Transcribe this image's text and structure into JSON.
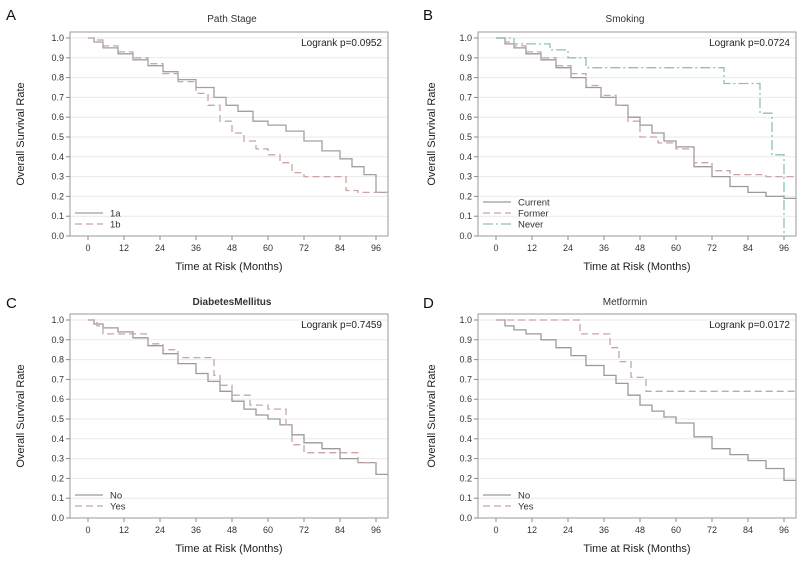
{
  "chart_data": [
    {
      "letter": "A",
      "title": "Path Stage",
      "type": "line",
      "annotation": "Logrank p=0.0952",
      "xlabel": "Time at Risk (Months)",
      "ylabel": "Overall Survival Rate",
      "xticks": [
        "0",
        "12",
        "24",
        "36",
        "48",
        "60",
        "72",
        "84",
        "96"
      ],
      "yticks": [
        "0.0",
        "0.1",
        "0.2",
        "0.3",
        "0.4",
        "0.5",
        "0.6",
        "0.7",
        "0.8",
        "0.9",
        "1.0"
      ],
      "xlim": [
        -6,
        100
      ],
      "ylim": [
        0,
        1
      ],
      "legend": "bottom-left",
      "series": [
        {
          "name": "1a",
          "color": "#a0a0a0",
          "dash": "",
          "x": [
            0,
            2,
            5,
            10,
            15,
            20,
            25,
            30,
            36,
            42,
            46,
            50,
            55,
            60,
            66,
            72,
            78,
            84,
            88,
            92,
            96,
            100
          ],
          "y": [
            1.0,
            0.98,
            0.95,
            0.92,
            0.89,
            0.86,
            0.83,
            0.79,
            0.75,
            0.7,
            0.66,
            0.63,
            0.58,
            0.56,
            0.53,
            0.48,
            0.43,
            0.39,
            0.35,
            0.31,
            0.22,
            0.22
          ]
        },
        {
          "name": "1b",
          "color": "#c9a5a5",
          "dash": "7,4",
          "x": [
            0,
            2,
            5,
            10,
            15,
            20,
            25,
            30,
            36,
            40,
            44,
            48,
            52,
            56,
            60,
            64,
            68,
            72,
            80,
            86,
            90,
            96,
            100
          ],
          "y": [
            1.0,
            0.99,
            0.96,
            0.93,
            0.9,
            0.87,
            0.82,
            0.78,
            0.72,
            0.66,
            0.58,
            0.52,
            0.48,
            0.44,
            0.41,
            0.37,
            0.32,
            0.3,
            0.3,
            0.23,
            0.22,
            0.22,
            0.22
          ]
        }
      ]
    },
    {
      "letter": "B",
      "title": "Smoking",
      "type": "line",
      "annotation": "Logrank p=0.0724",
      "xlabel": "Time at Risk (Months)",
      "ylabel": "Overall Survival Rate",
      "xticks": [
        "0",
        "12",
        "24",
        "36",
        "48",
        "60",
        "72",
        "84",
        "96"
      ],
      "yticks": [
        "0.0",
        "0.1",
        "0.2",
        "0.3",
        "0.4",
        "0.5",
        "0.6",
        "0.7",
        "0.8",
        "0.9",
        "1.0"
      ],
      "xlim": [
        -6,
        100
      ],
      "ylim": [
        0,
        1
      ],
      "legend": "bottom-left",
      "series": [
        {
          "name": "Current",
          "color": "#9a9a9a",
          "dash": "",
          "x": [
            0,
            3,
            6,
            10,
            15,
            20,
            25,
            30,
            35,
            40,
            44,
            48,
            52,
            56,
            60,
            66,
            72,
            78,
            84,
            90,
            96,
            100
          ],
          "y": [
            1.0,
            0.97,
            0.95,
            0.92,
            0.89,
            0.85,
            0.8,
            0.75,
            0.7,
            0.66,
            0.6,
            0.56,
            0.52,
            0.48,
            0.45,
            0.35,
            0.3,
            0.25,
            0.22,
            0.2,
            0.19,
            0.19
          ]
        },
        {
          "name": "Former",
          "color": "#c9a5a5",
          "dash": "7,4",
          "x": [
            0,
            3,
            6,
            10,
            15,
            20,
            25,
            30,
            35,
            40,
            44,
            48,
            54,
            60,
            66,
            72,
            78,
            84,
            90,
            96,
            100
          ],
          "y": [
            1.0,
            0.98,
            0.96,
            0.93,
            0.9,
            0.86,
            0.82,
            0.76,
            0.71,
            0.66,
            0.58,
            0.5,
            0.47,
            0.44,
            0.37,
            0.33,
            0.31,
            0.31,
            0.3,
            0.3,
            0.25
          ]
        },
        {
          "name": "Never",
          "color": "#8fc1b1",
          "dash": "10,3,2,3",
          "x": [
            0,
            6,
            18,
            24,
            30,
            70,
            76,
            82,
            88,
            92,
            95,
            96
          ],
          "y": [
            1.0,
            0.97,
            0.94,
            0.9,
            0.85,
            0.85,
            0.77,
            0.77,
            0.62,
            0.41,
            0.41,
            0.0
          ]
        }
      ]
    },
    {
      "letter": "C",
      "title": "DiabetesMellitus",
      "title_bold": true,
      "type": "line",
      "annotation": "Logrank p=0.7459",
      "xlabel": "Time at Risk (Months)",
      "ylabel": "Overall Survival Rate",
      "xticks": [
        "0",
        "12",
        "24",
        "36",
        "48",
        "60",
        "72",
        "84",
        "96"
      ],
      "yticks": [
        "0.0",
        "0.1",
        "0.2",
        "0.3",
        "0.4",
        "0.5",
        "0.6",
        "0.7",
        "0.8",
        "0.9",
        "1.0"
      ],
      "xlim": [
        -6,
        100
      ],
      "ylim": [
        0,
        1
      ],
      "legend": "bottom-left",
      "series": [
        {
          "name": "No",
          "color": "#9a9a9a",
          "dash": "",
          "x": [
            0,
            2,
            5,
            10,
            15,
            20,
            25,
            30,
            36,
            40,
            44,
            48,
            52,
            56,
            60,
            64,
            68,
            72,
            78,
            84,
            90,
            96,
            100
          ],
          "y": [
            1.0,
            0.98,
            0.96,
            0.94,
            0.91,
            0.87,
            0.83,
            0.78,
            0.73,
            0.69,
            0.64,
            0.59,
            0.55,
            0.52,
            0.5,
            0.47,
            0.42,
            0.38,
            0.35,
            0.3,
            0.28,
            0.22,
            0.22
          ]
        },
        {
          "name": "Yes",
          "color": "#c9a5a5",
          "dash": "7,4",
          "x": [
            0,
            3,
            5,
            10,
            20,
            25,
            30,
            34,
            42,
            44,
            48,
            52,
            54,
            60,
            64,
            66,
            68,
            72,
            84,
            90,
            96
          ],
          "y": [
            1.0,
            0.97,
            0.93,
            0.93,
            0.88,
            0.85,
            0.81,
            0.81,
            0.72,
            0.67,
            0.62,
            0.62,
            0.57,
            0.55,
            0.55,
            0.47,
            0.37,
            0.33,
            0.33,
            0.28,
            0.28
          ]
        }
      ]
    },
    {
      "letter": "D",
      "title": "Metformin",
      "type": "line",
      "annotation": "Logrank p=0.0172",
      "xlabel": "Time at Risk (Months)",
      "ylabel": "Overall Survival Rate",
      "xticks": [
        "0",
        "12",
        "24",
        "36",
        "48",
        "60",
        "72",
        "84",
        "96"
      ],
      "yticks": [
        "0.0",
        "0.1",
        "0.2",
        "0.3",
        "0.4",
        "0.5",
        "0.6",
        "0.7",
        "0.8",
        "0.9",
        "1.0"
      ],
      "xlim": [
        -6,
        100
      ],
      "ylim": [
        0,
        1
      ],
      "legend": "bottom-left",
      "series": [
        {
          "name": "No",
          "color": "#9a9a9a",
          "dash": "",
          "x": [
            0,
            3,
            6,
            10,
            15,
            20,
            25,
            30,
            36,
            40,
            44,
            48,
            52,
            56,
            60,
            66,
            72,
            78,
            84,
            90,
            96,
            100
          ],
          "y": [
            1.0,
            0.97,
            0.95,
            0.93,
            0.9,
            0.86,
            0.82,
            0.77,
            0.72,
            0.68,
            0.62,
            0.57,
            0.54,
            0.51,
            0.48,
            0.41,
            0.35,
            0.32,
            0.29,
            0.25,
            0.19,
            0.19
          ]
        },
        {
          "name": "Yes",
          "color": "#c9a5a5",
          "dash": "7,4",
          "x": [
            0,
            27,
            28,
            34,
            38,
            41,
            45,
            48,
            50,
            52,
            100
          ],
          "y": [
            1.0,
            1.0,
            0.93,
            0.93,
            0.86,
            0.79,
            0.71,
            0.71,
            0.64,
            0.64,
            0.64
          ]
        }
      ]
    }
  ]
}
